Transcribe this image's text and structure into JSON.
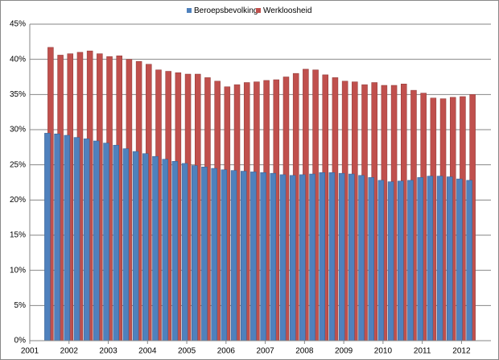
{
  "chart_data": {
    "type": "bar",
    "x": [
      2001.5,
      2001.75,
      2002,
      2002.25,
      2002.5,
      2002.75,
      2003,
      2003.25,
      2003.5,
      2003.75,
      2004,
      2004.25,
      2004.5,
      2004.75,
      2005,
      2005.25,
      2005.5,
      2005.75,
      2006,
      2006.25,
      2006.5,
      2006.75,
      2007,
      2007.25,
      2007.5,
      2007.75,
      2008,
      2008.25,
      2008.5,
      2008.75,
      2009,
      2009.25,
      2009.5,
      2009.75,
      2010,
      2010.25,
      2010.5,
      2010.75,
      2011,
      2011.25,
      2011.5,
      2011.75,
      2012,
      2012.25
    ],
    "series": [
      {
        "name": "Beroepsbevolking",
        "color": "#4f81bd",
        "values": [
          29.5,
          29.4,
          29.2,
          28.9,
          28.7,
          28.4,
          28.1,
          27.8,
          27.3,
          26.9,
          26.6,
          26.2,
          25.8,
          25.5,
          25.2,
          24.9,
          24.7,
          24.5,
          24.3,
          24.2,
          24.1,
          24.0,
          23.9,
          23.8,
          23.6,
          23.5,
          23.6,
          23.7,
          23.9,
          23.9,
          23.8,
          23.7,
          23.5,
          23.2,
          22.8,
          22.6,
          22.7,
          22.8,
          23.2,
          23.4,
          23.4,
          23.3,
          23.0,
          22.8
        ]
      },
      {
        "name": "Werkloosheid",
        "color": "#c0504d",
        "values": [
          41.7,
          40.6,
          40.8,
          41.0,
          41.2,
          40.8,
          40.4,
          40.5,
          40.0,
          39.7,
          39.3,
          38.5,
          38.3,
          38.1,
          37.9,
          37.9,
          37.4,
          36.9,
          36.1,
          36.4,
          36.7,
          36.8,
          37.0,
          37.1,
          37.5,
          38.0,
          38.6,
          38.5,
          37.8,
          37.4,
          36.9,
          36.8,
          36.4,
          36.7,
          36.3,
          36.3,
          36.5,
          35.6,
          35.2,
          34.5,
          34.4,
          34.6,
          34.7,
          35.0
        ]
      }
    ],
    "xlim": [
      2001,
      2012.75
    ],
    "xticks": [
      2001,
      2002,
      2003,
      2004,
      2005,
      2006,
      2007,
      2008,
      2009,
      2010,
      2011,
      2012
    ],
    "ylim": [
      0,
      45
    ],
    "yticks": [
      {
        "value": 0,
        "label": "0%"
      },
      {
        "value": 5,
        "label": "5%"
      },
      {
        "value": 10,
        "label": "10%"
      },
      {
        "value": 15,
        "label": "15%"
      },
      {
        "value": 20,
        "label": "20%"
      },
      {
        "value": 25,
        "label": "25%"
      },
      {
        "value": 30,
        "label": "30%"
      },
      {
        "value": 35,
        "label": "35%"
      },
      {
        "value": 40,
        "label": "40%"
      },
      {
        "value": 45,
        "label": "45%"
      }
    ],
    "grid": true,
    "legend": "top"
  }
}
